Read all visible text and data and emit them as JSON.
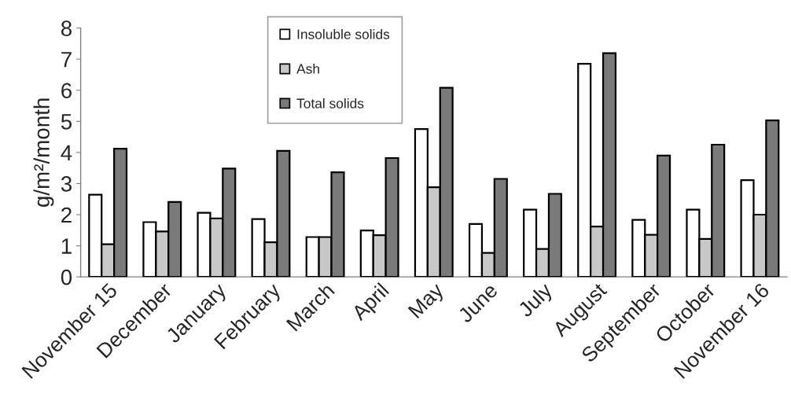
{
  "chart_data": {
    "type": "bar",
    "categories": [
      "November 15",
      "December",
      "January",
      "February",
      "March",
      "April",
      "May",
      "June",
      "July",
      "August",
      "September",
      "October",
      "November 16"
    ],
    "series": [
      {
        "name": "Insoluble solids",
        "color": "#ffffff",
        "values": [
          2.64,
          1.76,
          2.06,
          1.86,
          1.28,
          1.49,
          4.75,
          1.7,
          2.16,
          6.85,
          1.83,
          2.16,
          3.11
        ]
      },
      {
        "name": "Ash",
        "color": "#c8c8c8",
        "values": [
          1.05,
          1.46,
          1.88,
          1.11,
          1.28,
          1.34,
          2.88,
          0.77,
          0.9,
          1.62,
          1.35,
          1.22,
          2.0
        ]
      },
      {
        "name": "Total solids",
        "color": "#7a7a7a",
        "values": [
          4.12,
          2.41,
          3.48,
          4.05,
          3.36,
          3.82,
          6.08,
          3.15,
          2.67,
          7.19,
          3.9,
          4.25,
          5.03
        ]
      }
    ],
    "ylabel": "g/m²/month",
    "ylim": [
      0,
      8
    ],
    "yticks": [
      0,
      1,
      2,
      3,
      4,
      5,
      6,
      7,
      8
    ],
    "legend": "top"
  }
}
